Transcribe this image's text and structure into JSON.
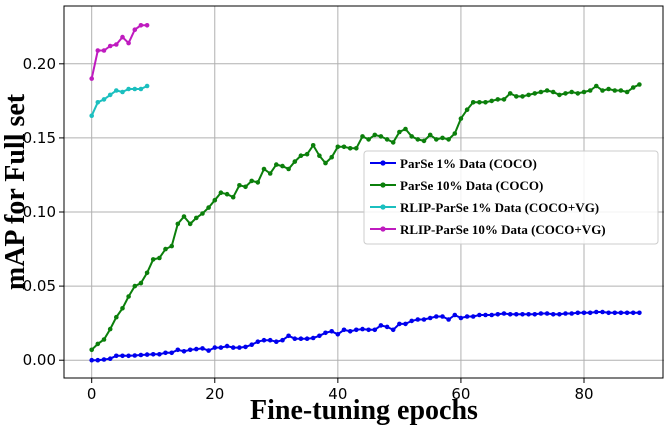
{
  "chart_data": {
    "type": "line",
    "title": "",
    "xlabel": "Fine-tuning epochs",
    "ylabel": "mAP for Full set",
    "xlim": [
      -4.5,
      93
    ],
    "ylim": [
      -0.012,
      0.239
    ],
    "xticks": [
      0,
      20,
      40,
      60,
      80
    ],
    "yticks": [
      0.0,
      0.05,
      0.1,
      0.15,
      0.2
    ],
    "ytick_labels": [
      "0.00",
      "0.05",
      "0.10",
      "0.15",
      "0.20"
    ],
    "grid": true,
    "legend_position": "center-right",
    "series": [
      {
        "name": "ParSe 1% Data (COCO)",
        "color": "#0000ee",
        "x": [
          0,
          1,
          2,
          3,
          4,
          5,
          6,
          7,
          8,
          9,
          10,
          11,
          12,
          13,
          14,
          15,
          16,
          17,
          18,
          19,
          20,
          21,
          22,
          23,
          24,
          25,
          26,
          27,
          28,
          29,
          30,
          31,
          32,
          33,
          34,
          35,
          36,
          37,
          38,
          39,
          40,
          41,
          42,
          43,
          44,
          45,
          46,
          47,
          48,
          49,
          50,
          51,
          52,
          53,
          54,
          55,
          56,
          57,
          58,
          59,
          60,
          61,
          62,
          63,
          64,
          65,
          66,
          67,
          68,
          69,
          70,
          71,
          72,
          73,
          74,
          75,
          76,
          77,
          78,
          79,
          80,
          81,
          82,
          83,
          84,
          85,
          86,
          87,
          88,
          89
        ],
        "y": [
          0.0,
          0.0,
          0.0005,
          0.001,
          0.003,
          0.003,
          0.003,
          0.0032,
          0.0035,
          0.0038,
          0.004,
          0.004,
          0.005,
          0.005,
          0.007,
          0.006,
          0.007,
          0.0075,
          0.008,
          0.0065,
          0.0085,
          0.0085,
          0.0095,
          0.0085,
          0.0085,
          0.009,
          0.0105,
          0.0125,
          0.0135,
          0.0135,
          0.0125,
          0.0135,
          0.0165,
          0.0145,
          0.0145,
          0.0145,
          0.015,
          0.0165,
          0.0185,
          0.0195,
          0.0175,
          0.0205,
          0.0195,
          0.0205,
          0.021,
          0.0205,
          0.0205,
          0.0235,
          0.0225,
          0.0205,
          0.0245,
          0.0245,
          0.0265,
          0.0275,
          0.0275,
          0.0285,
          0.0295,
          0.0295,
          0.0275,
          0.0305,
          0.0285,
          0.0295,
          0.0295,
          0.0305,
          0.0305,
          0.0305,
          0.031,
          0.0315,
          0.031,
          0.031,
          0.031,
          0.031,
          0.031,
          0.0315,
          0.0315,
          0.031,
          0.031,
          0.0315,
          0.0315,
          0.032,
          0.032,
          0.032,
          0.0325,
          0.0325,
          0.032,
          0.032,
          0.032,
          0.032,
          0.032,
          0.032
        ]
      },
      {
        "name": "ParSe 10% Data (COCO)",
        "color": "#0b7f0b",
        "x": [
          0,
          1,
          2,
          3,
          4,
          5,
          6,
          7,
          8,
          9,
          10,
          11,
          12,
          13,
          14,
          15,
          16,
          17,
          18,
          19,
          20,
          21,
          22,
          23,
          24,
          25,
          26,
          27,
          28,
          29,
          30,
          31,
          32,
          33,
          34,
          35,
          36,
          37,
          38,
          39,
          40,
          41,
          42,
          43,
          44,
          45,
          46,
          47,
          48,
          49,
          50,
          51,
          52,
          53,
          54,
          55,
          56,
          57,
          58,
          59,
          60,
          61,
          62,
          63,
          64,
          65,
          66,
          67,
          68,
          69,
          70,
          71,
          72,
          73,
          74,
          75,
          76,
          77,
          78,
          79,
          80,
          81,
          82,
          83,
          84,
          85,
          86,
          87,
          88,
          89
        ],
        "y": [
          0.007,
          0.011,
          0.014,
          0.021,
          0.029,
          0.035,
          0.043,
          0.05,
          0.052,
          0.059,
          0.068,
          0.069,
          0.075,
          0.077,
          0.092,
          0.097,
          0.092,
          0.096,
          0.099,
          0.103,
          0.108,
          0.113,
          0.112,
          0.11,
          0.118,
          0.117,
          0.121,
          0.12,
          0.129,
          0.126,
          0.132,
          0.131,
          0.129,
          0.134,
          0.138,
          0.139,
          0.145,
          0.138,
          0.133,
          0.137,
          0.144,
          0.144,
          0.143,
          0.143,
          0.151,
          0.149,
          0.152,
          0.151,
          0.149,
          0.147,
          0.154,
          0.156,
          0.151,
          0.149,
          0.148,
          0.152,
          0.149,
          0.15,
          0.149,
          0.153,
          0.163,
          0.169,
          0.174,
          0.174,
          0.174,
          0.175,
          0.176,
          0.176,
          0.18,
          0.178,
          0.178,
          0.179,
          0.18,
          0.181,
          0.182,
          0.181,
          0.179,
          0.18,
          0.181,
          0.18,
          0.181,
          0.182,
          0.185,
          0.182,
          0.183,
          0.182,
          0.182,
          0.181,
          0.184,
          0.186
        ]
      },
      {
        "name": "RLIP-ParSe 1% Data (COCO+VG)",
        "color": "#1bbfbf",
        "x": [
          0,
          1,
          2,
          3,
          4,
          5,
          6,
          7,
          8,
          9
        ],
        "y": [
          0.165,
          0.174,
          0.176,
          0.179,
          0.182,
          0.181,
          0.183,
          0.183,
          0.183,
          0.185
        ]
      },
      {
        "name": "RLIP-ParSe 10% Data (COCO+VG)",
        "color": "#bf1bbf",
        "x": [
          0,
          1,
          2,
          3,
          4,
          5,
          6,
          7,
          8,
          9
        ],
        "y": [
          0.19,
          0.209,
          0.209,
          0.212,
          0.213,
          0.218,
          0.214,
          0.223,
          0.226,
          0.226
        ]
      }
    ]
  }
}
